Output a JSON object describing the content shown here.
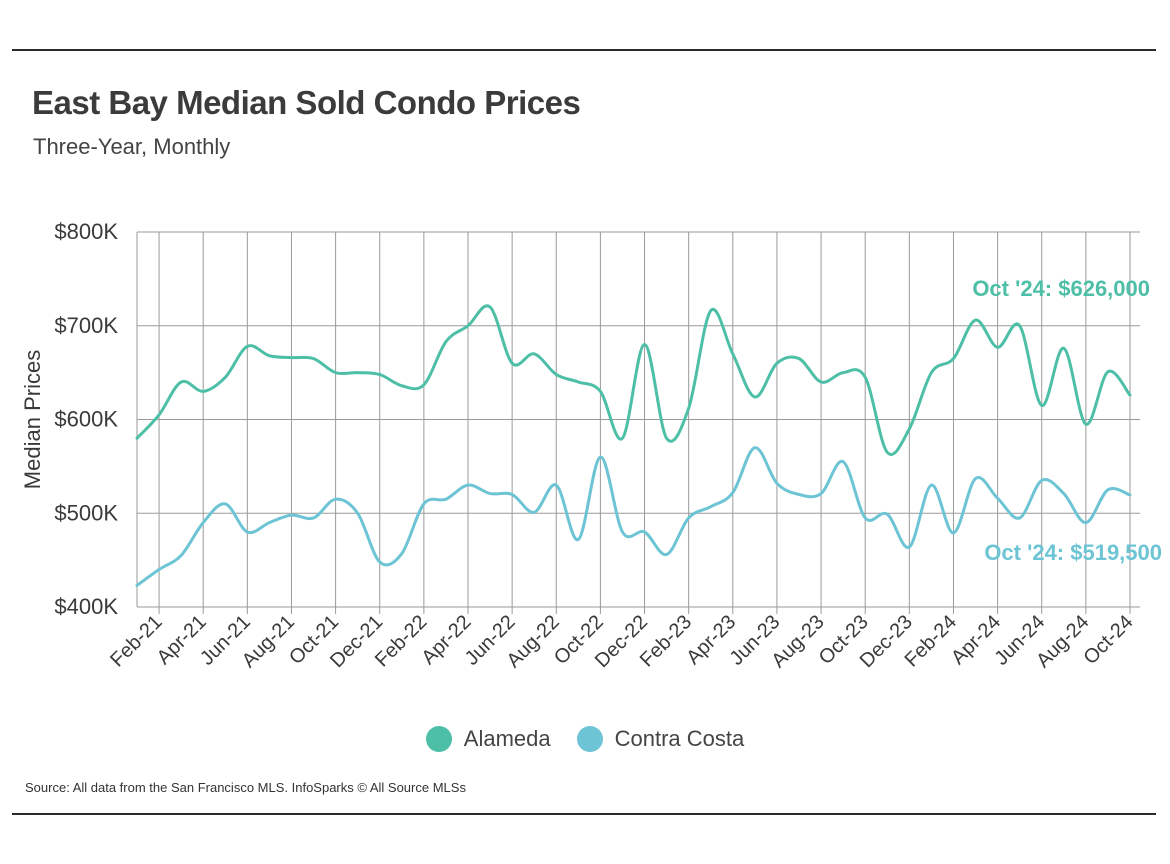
{
  "header": {
    "title": "East Bay Median Sold Condo Prices",
    "subtitle": "Three-Year, Monthly"
  },
  "footer": {
    "source": "Source:  All data from the San Francisco MLS. InfoSparks © All Source MLSs"
  },
  "colors": {
    "alameda": "#4dbfa6",
    "contra_costa": "#6cc4d4",
    "grid": "#9a9a9a",
    "text": "#3a3a3a"
  },
  "chart_data": {
    "type": "line",
    "ylabel": "Median Prices",
    "ylim": [
      400000,
      800000
    ],
    "yticks": [
      400000,
      500000,
      600000,
      700000,
      800000
    ],
    "ytick_labels": [
      "$400K",
      "$500K",
      "$600K",
      "$700K",
      "$800K"
    ],
    "x": [
      "Jan-21",
      "Feb-21",
      "Mar-21",
      "Apr-21",
      "May-21",
      "Jun-21",
      "Jul-21",
      "Aug-21",
      "Sep-21",
      "Oct-21",
      "Nov-21",
      "Dec-21",
      "Jan-22",
      "Feb-22",
      "Mar-22",
      "Apr-22",
      "May-22",
      "Jun-22",
      "Jul-22",
      "Aug-22",
      "Sep-22",
      "Oct-22",
      "Nov-22",
      "Dec-22",
      "Jan-23",
      "Feb-23",
      "Mar-23",
      "Apr-23",
      "May-23",
      "Jun-23",
      "Jul-23",
      "Aug-23",
      "Sep-23",
      "Oct-23",
      "Nov-23",
      "Dec-23",
      "Jan-24",
      "Feb-24",
      "Mar-24",
      "Apr-24",
      "May-24",
      "Jun-24",
      "Jul-24",
      "Aug-24",
      "Sep-24",
      "Oct-24"
    ],
    "xtick_labels": [
      "Feb-21",
      "Apr-21",
      "Jun-21",
      "Aug-21",
      "Oct-21",
      "Dec-21",
      "Feb-22",
      "Apr-22",
      "Jun-22",
      "Aug-22",
      "Oct-22",
      "Dec-22",
      "Feb-23",
      "Apr-23",
      "Jun-23",
      "Aug-23",
      "Oct-23",
      "Dec-23",
      "Feb-24",
      "Apr-24",
      "Jun-24",
      "Aug-24",
      "Oct-24"
    ],
    "grid": true,
    "legend_position": "bottom",
    "series": [
      {
        "name": "Alameda",
        "color": "#4dbfa6",
        "values": [
          580000,
          605000,
          640000,
          630000,
          645000,
          678000,
          668000,
          666000,
          665000,
          650000,
          650000,
          648000,
          636000,
          637000,
          683000,
          700000,
          720000,
          660000,
          670000,
          648000,
          640000,
          630000,
          580000,
          680000,
          580000,
          612000,
          716000,
          670000,
          624000,
          660000,
          665000,
          640000,
          650000,
          645000,
          565000,
          590000,
          650000,
          665000,
          706000,
          677000,
          700000,
          615000,
          676000,
          595000,
          651000,
          626000
        ]
      },
      {
        "name": "Contra Costa",
        "color": "#6cc4d4",
        "values": [
          423000,
          440000,
          455000,
          490000,
          510000,
          480000,
          490000,
          498000,
          495000,
          515000,
          500000,
          448000,
          457000,
          510000,
          515000,
          530000,
          521000,
          520000,
          501000,
          530000,
          472000,
          560000,
          480000,
          480000,
          456000,
          495000,
          507000,
          522000,
          570000,
          532000,
          520000,
          521000,
          555000,
          495000,
          499000,
          464000,
          530000,
          479000,
          537000,
          516000,
          495000,
          535000,
          521000,
          490000,
          525000,
          519500
        ]
      }
    ],
    "annotations": [
      {
        "series": "Alameda",
        "text": "Oct '24: $626,000"
      },
      {
        "series": "Contra Costa",
        "text": "Oct '24: $519,500"
      }
    ]
  }
}
